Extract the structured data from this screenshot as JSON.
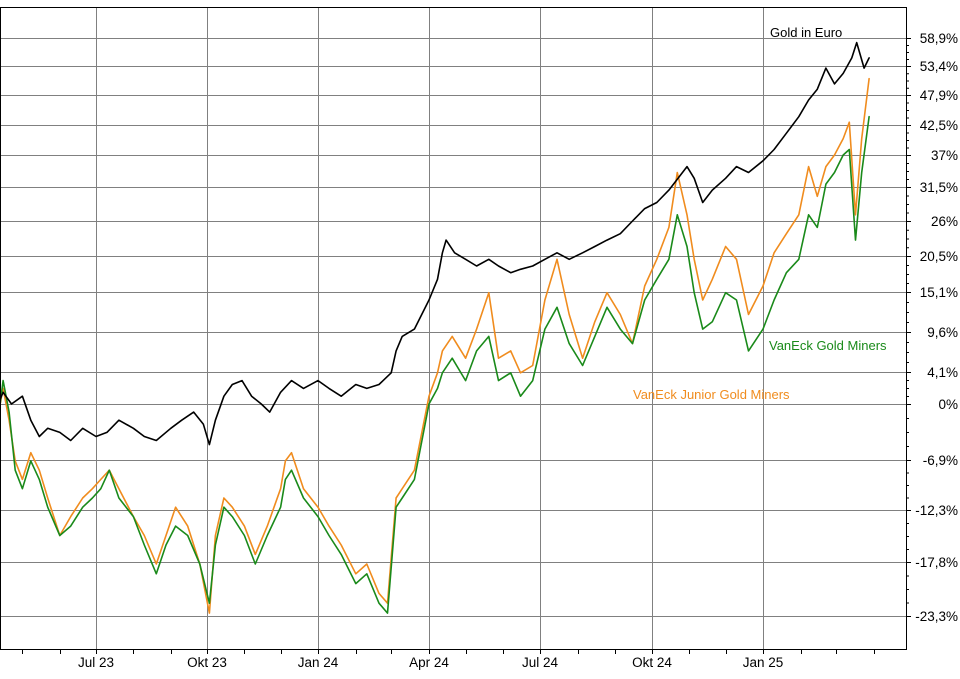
{
  "chart_data": {
    "type": "line",
    "title": "",
    "xlabel": "",
    "ylabel": "",
    "x_ticks": [
      "Jul 23",
      "Okt 23",
      "Jan 24",
      "Apr 24",
      "Jul 24",
      "Okt 24",
      "Jan 25"
    ],
    "y_ticks": [
      "58,9%",
      "53,4%",
      "47,9%",
      "42,5%",
      "37%",
      "31,5%",
      "26%",
      "20,5%",
      "15,1%",
      "9,6%",
      "4,1%",
      "0%",
      "-6,9%",
      "-12,3%",
      "-17,8%",
      "-23,3%"
    ],
    "ylim": [
      -28,
      64
    ],
    "y_unit": "%",
    "x_range": [
      "2023-04",
      "2025-03"
    ],
    "grid": true,
    "series": [
      {
        "name": "Gold in Euro",
        "color": "#000000",
        "points": [
          [
            "2023-04-01",
            1
          ],
          [
            "2023-04-08",
            -1
          ],
          [
            "2023-04-15",
            1.5
          ],
          [
            "2023-04-22",
            0
          ],
          [
            "2023-05-01",
            1
          ],
          [
            "2023-05-08",
            -2
          ],
          [
            "2023-05-15",
            -4
          ],
          [
            "2023-05-22",
            -3
          ],
          [
            "2023-06-01",
            -3.5
          ],
          [
            "2023-06-10",
            -4.5
          ],
          [
            "2023-06-20",
            -3
          ],
          [
            "2023-07-01",
            -4
          ],
          [
            "2023-07-10",
            -3.5
          ],
          [
            "2023-07-20",
            -2
          ],
          [
            "2023-08-01",
            -3
          ],
          [
            "2023-08-10",
            -4
          ],
          [
            "2023-08-20",
            -4.5
          ],
          [
            "2023-09-01",
            -3
          ],
          [
            "2023-09-10",
            -2
          ],
          [
            "2023-09-20",
            -1
          ],
          [
            "2023-09-28",
            -2.5
          ],
          [
            "2023-10-03",
            -5
          ],
          [
            "2023-10-08",
            -2
          ],
          [
            "2023-10-15",
            1
          ],
          [
            "2023-10-22",
            2.5
          ],
          [
            "2023-10-30",
            3
          ],
          [
            "2023-11-07",
            1
          ],
          [
            "2023-11-15",
            0
          ],
          [
            "2023-11-22",
            -1
          ],
          [
            "2023-12-01",
            1.5
          ],
          [
            "2023-12-10",
            3
          ],
          [
            "2023-12-20",
            2
          ],
          [
            "2024-01-01",
            3
          ],
          [
            "2024-01-10",
            2
          ],
          [
            "2024-01-20",
            1
          ],
          [
            "2024-02-01",
            2.5
          ],
          [
            "2024-02-10",
            2
          ],
          [
            "2024-02-20",
            2.5
          ],
          [
            "2024-03-01",
            4
          ],
          [
            "2024-03-05",
            7
          ],
          [
            "2024-03-10",
            9
          ],
          [
            "2024-03-20",
            10
          ],
          [
            "2024-04-01",
            14
          ],
          [
            "2024-04-08",
            17
          ],
          [
            "2024-04-12",
            21
          ],
          [
            "2024-04-15",
            23
          ],
          [
            "2024-04-22",
            21
          ],
          [
            "2024-05-01",
            20
          ],
          [
            "2024-05-10",
            19
          ],
          [
            "2024-05-20",
            20
          ],
          [
            "2024-05-28",
            19
          ],
          [
            "2024-06-07",
            18
          ],
          [
            "2024-06-15",
            18.5
          ],
          [
            "2024-06-25",
            19
          ],
          [
            "2024-07-05",
            20
          ],
          [
            "2024-07-15",
            21
          ],
          [
            "2024-07-25",
            20
          ],
          [
            "2024-08-05",
            21
          ],
          [
            "2024-08-15",
            22
          ],
          [
            "2024-08-25",
            23
          ],
          [
            "2024-09-05",
            24
          ],
          [
            "2024-09-15",
            26
          ],
          [
            "2024-09-25",
            28
          ],
          [
            "2024-10-05",
            29
          ],
          [
            "2024-10-15",
            31
          ],
          [
            "2024-10-30",
            35
          ],
          [
            "2024-11-05",
            33
          ],
          [
            "2024-11-12",
            29
          ],
          [
            "2024-11-20",
            31
          ],
          [
            "2024-12-01",
            33
          ],
          [
            "2024-12-10",
            35
          ],
          [
            "2024-12-20",
            34
          ],
          [
            "2025-01-01",
            36
          ],
          [
            "2025-01-10",
            38
          ],
          [
            "2025-01-20",
            41
          ],
          [
            "2025-01-30",
            44
          ],
          [
            "2025-02-07",
            47
          ],
          [
            "2025-02-14",
            49
          ],
          [
            "2025-02-21",
            53
          ],
          [
            "2025-02-28",
            50
          ],
          [
            "2025-03-07",
            52
          ],
          [
            "2025-03-14",
            55
          ],
          [
            "2025-03-18",
            58
          ],
          [
            "2025-03-24",
            53
          ],
          [
            "2025-03-28",
            55
          ]
        ]
      },
      {
        "name": "VanEck Gold Miners",
        "color": "#1a8a1a",
        "points": [
          [
            "2023-04-01",
            0
          ],
          [
            "2023-04-05",
            -5
          ],
          [
            "2023-04-10",
            -3
          ],
          [
            "2023-04-15",
            3
          ],
          [
            "2023-04-20",
            -1
          ],
          [
            "2023-04-25",
            -8
          ],
          [
            "2023-05-01",
            -10
          ],
          [
            "2023-05-08",
            -7
          ],
          [
            "2023-05-15",
            -9
          ],
          [
            "2023-05-22",
            -12
          ],
          [
            "2023-06-01",
            -15
          ],
          [
            "2023-06-10",
            -14
          ],
          [
            "2023-06-20",
            -12
          ],
          [
            "2023-06-28",
            -11
          ],
          [
            "2023-07-05",
            -10
          ],
          [
            "2023-07-12",
            -8
          ],
          [
            "2023-07-20",
            -11
          ],
          [
            "2023-08-01",
            -13
          ],
          [
            "2023-08-10",
            -16
          ],
          [
            "2023-08-20",
            -19
          ],
          [
            "2023-08-28",
            -16
          ],
          [
            "2023-09-05",
            -14
          ],
          [
            "2023-09-15",
            -15
          ],
          [
            "2023-09-25",
            -18
          ],
          [
            "2023-10-03",
            -22
          ],
          [
            "2023-10-08",
            -16
          ],
          [
            "2023-10-15",
            -12
          ],
          [
            "2023-10-22",
            -13
          ],
          [
            "2023-11-01",
            -15
          ],
          [
            "2023-11-10",
            -18
          ],
          [
            "2023-11-20",
            -15
          ],
          [
            "2023-12-01",
            -12
          ],
          [
            "2023-12-05",
            -9
          ],
          [
            "2023-12-10",
            -8
          ],
          [
            "2023-12-20",
            -11
          ],
          [
            "2024-01-01",
            -13
          ],
          [
            "2024-01-10",
            -15
          ],
          [
            "2024-01-20",
            -17
          ],
          [
            "2024-02-01",
            -20
          ],
          [
            "2024-02-10",
            -19
          ],
          [
            "2024-02-20",
            -22
          ],
          [
            "2024-02-27",
            -23
          ],
          [
            "2024-03-05",
            -12
          ],
          [
            "2024-03-10",
            -11
          ],
          [
            "2024-03-20",
            -9
          ],
          [
            "2024-04-01",
            0
          ],
          [
            "2024-04-08",
            2
          ],
          [
            "2024-04-12",
            4
          ],
          [
            "2024-04-20",
            6
          ],
          [
            "2024-05-01",
            3
          ],
          [
            "2024-05-10",
            7
          ],
          [
            "2024-05-20",
            9
          ],
          [
            "2024-05-28",
            3
          ],
          [
            "2024-06-07",
            4
          ],
          [
            "2024-06-15",
            1
          ],
          [
            "2024-06-25",
            3
          ],
          [
            "2024-07-05",
            10
          ],
          [
            "2024-07-15",
            13
          ],
          [
            "2024-07-25",
            8
          ],
          [
            "2024-08-05",
            5
          ],
          [
            "2024-08-15",
            9
          ],
          [
            "2024-08-25",
            13
          ],
          [
            "2024-09-05",
            10
          ],
          [
            "2024-09-15",
            8
          ],
          [
            "2024-09-25",
            14
          ],
          [
            "2024-10-05",
            17
          ],
          [
            "2024-10-15",
            20
          ],
          [
            "2024-10-22",
            27
          ],
          [
            "2024-10-30",
            22
          ],
          [
            "2024-11-05",
            15
          ],
          [
            "2024-11-12",
            10
          ],
          [
            "2024-11-20",
            11
          ],
          [
            "2024-12-01",
            15
          ],
          [
            "2024-12-10",
            14
          ],
          [
            "2024-12-20",
            7
          ],
          [
            "2025-01-01",
            10
          ],
          [
            "2025-01-10",
            14
          ],
          [
            "2025-01-20",
            18
          ],
          [
            "2025-01-30",
            20
          ],
          [
            "2025-02-07",
            27
          ],
          [
            "2025-02-14",
            25
          ],
          [
            "2025-02-21",
            32
          ],
          [
            "2025-02-28",
            34
          ],
          [
            "2025-03-07",
            37
          ],
          [
            "2025-03-12",
            38
          ],
          [
            "2025-03-17",
            23
          ],
          [
            "2025-03-22",
            34
          ],
          [
            "2025-03-28",
            44
          ]
        ]
      },
      {
        "name": "VanEck Junior Gold Miners",
        "color": "#f08c1e",
        "points": [
          [
            "2023-04-01",
            -1
          ],
          [
            "2023-04-05",
            -4
          ],
          [
            "2023-04-10",
            -2
          ],
          [
            "2023-04-15",
            2
          ],
          [
            "2023-04-20",
            -2
          ],
          [
            "2023-04-25",
            -7
          ],
          [
            "2023-05-01",
            -9
          ],
          [
            "2023-05-08",
            -6
          ],
          [
            "2023-05-15",
            -8
          ],
          [
            "2023-05-22",
            -11
          ],
          [
            "2023-06-01",
            -15
          ],
          [
            "2023-06-10",
            -13
          ],
          [
            "2023-06-20",
            -11
          ],
          [
            "2023-06-28",
            -10
          ],
          [
            "2023-07-05",
            -9
          ],
          [
            "2023-07-12",
            -8
          ],
          [
            "2023-07-20",
            -10
          ],
          [
            "2023-08-01",
            -13
          ],
          [
            "2023-08-10",
            -15
          ],
          [
            "2023-08-20",
            -18
          ],
          [
            "2023-08-28",
            -15
          ],
          [
            "2023-09-05",
            -12
          ],
          [
            "2023-09-15",
            -14
          ],
          [
            "2023-09-25",
            -18
          ],
          [
            "2023-10-03",
            -23
          ],
          [
            "2023-10-08",
            -15
          ],
          [
            "2023-10-15",
            -11
          ],
          [
            "2023-10-22",
            -12
          ],
          [
            "2023-11-01",
            -14
          ],
          [
            "2023-11-10",
            -17
          ],
          [
            "2023-11-20",
            -14
          ],
          [
            "2023-12-01",
            -10
          ],
          [
            "2023-12-05",
            -7
          ],
          [
            "2023-12-10",
            -6
          ],
          [
            "2023-12-20",
            -10
          ],
          [
            "2024-01-01",
            -12
          ],
          [
            "2024-01-10",
            -14
          ],
          [
            "2024-01-20",
            -16
          ],
          [
            "2024-02-01",
            -19
          ],
          [
            "2024-02-10",
            -18
          ],
          [
            "2024-02-20",
            -21
          ],
          [
            "2024-02-27",
            -22
          ],
          [
            "2024-03-05",
            -11
          ],
          [
            "2024-03-10",
            -10
          ],
          [
            "2024-03-20",
            -8
          ],
          [
            "2024-04-01",
            1
          ],
          [
            "2024-04-08",
            4
          ],
          [
            "2024-04-12",
            7
          ],
          [
            "2024-04-20",
            9
          ],
          [
            "2024-05-01",
            6
          ],
          [
            "2024-05-10",
            10
          ],
          [
            "2024-05-20",
            15
          ],
          [
            "2024-05-28",
            6
          ],
          [
            "2024-06-07",
            7
          ],
          [
            "2024-06-15",
            4
          ],
          [
            "2024-06-25",
            5
          ],
          [
            "2024-07-05",
            14
          ],
          [
            "2024-07-15",
            20
          ],
          [
            "2024-07-25",
            12
          ],
          [
            "2024-08-05",
            6
          ],
          [
            "2024-08-15",
            11
          ],
          [
            "2024-08-25",
            15
          ],
          [
            "2024-09-05",
            12
          ],
          [
            "2024-09-15",
            8
          ],
          [
            "2024-09-25",
            16
          ],
          [
            "2024-10-05",
            20
          ],
          [
            "2024-10-15",
            25
          ],
          [
            "2024-10-22",
            34
          ],
          [
            "2024-10-30",
            27
          ],
          [
            "2024-11-05",
            20
          ],
          [
            "2024-11-12",
            14
          ],
          [
            "2024-11-20",
            17
          ],
          [
            "2024-12-01",
            22
          ],
          [
            "2024-12-10",
            20
          ],
          [
            "2024-12-20",
            12
          ],
          [
            "2025-01-01",
            16
          ],
          [
            "2025-01-10",
            21
          ],
          [
            "2025-01-20",
            24
          ],
          [
            "2025-01-30",
            27
          ],
          [
            "2025-02-07",
            35
          ],
          [
            "2025-02-14",
            30
          ],
          [
            "2025-02-21",
            35
          ],
          [
            "2025-02-28",
            37
          ],
          [
            "2025-03-07",
            40
          ],
          [
            "2025-03-12",
            43
          ],
          [
            "2025-03-17",
            27
          ],
          [
            "2025-03-22",
            40
          ],
          [
            "2025-03-28",
            51
          ]
        ]
      }
    ]
  }
}
